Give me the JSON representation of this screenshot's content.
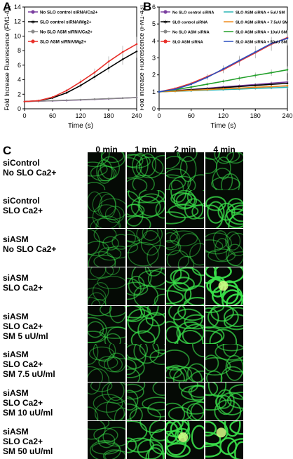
{
  "figure": {
    "panel_a_letter": "A",
    "panel_b_letter": "B",
    "panel_c_letter": "C"
  },
  "chart_data": [
    {
      "type": "line",
      "panel": "A",
      "xlabel": "Time (s)",
      "ylabel": "Fold Increase Fluorescence (FM1-43)",
      "xlim": [
        0,
        240
      ],
      "ylim": [
        0,
        14
      ],
      "xticks": [
        "0",
        "60",
        "120",
        "180",
        "240"
      ],
      "yticks": [
        "0",
        "2",
        "4",
        "6",
        "8",
        "10",
        "12",
        "14"
      ],
      "legend_position": "top-left",
      "series": [
        {
          "name": "No SLO control siRNA/Ca2+",
          "color": "#7b3fa0",
          "marker": "circle",
          "x": [
            0,
            30,
            60,
            90,
            120,
            150,
            180,
            210,
            240
          ],
          "y": [
            1.0,
            1.05,
            1.1,
            1.15,
            1.22,
            1.3,
            1.38,
            1.47,
            1.55
          ]
        },
        {
          "name": "SLO control siRNA/Mg2+",
          "color": "#000000",
          "marker": "star",
          "x": [
            0,
            30,
            60,
            90,
            120,
            150,
            180,
            210,
            240
          ],
          "y": [
            1.0,
            1.1,
            1.5,
            2.2,
            3.2,
            4.4,
            5.6,
            6.8,
            7.9
          ]
        },
        {
          "name": "No SLO ASM siRNA/Ca2+",
          "color": "#8a8a8a",
          "marker": "circle",
          "x": [
            0,
            30,
            60,
            90,
            120,
            150,
            180,
            210,
            240
          ],
          "y": [
            1.0,
            1.05,
            1.12,
            1.18,
            1.25,
            1.32,
            1.4,
            1.47,
            1.55
          ]
        },
        {
          "name": "SLO ASM siRNA/Mg2+",
          "color": "#e8302a",
          "marker": "circle",
          "x": [
            0,
            30,
            60,
            90,
            120,
            150,
            180,
            210,
            240
          ],
          "y": [
            1.0,
            1.12,
            1.6,
            2.5,
            3.7,
            5.0,
            6.5,
            7.8,
            8.9
          ]
        }
      ]
    },
    {
      "type": "line",
      "panel": "B",
      "xlabel": "Time (s)",
      "ylabel": "Fold Increase Fluorescence (FM1-43)",
      "xlim": [
        0,
        240
      ],
      "ylim": [
        0,
        6
      ],
      "xticks": [
        "0",
        "60",
        "120",
        "180",
        "240"
      ],
      "yticks": [
        "0",
        "1",
        "2",
        "3",
        "4",
        "5",
        "6"
      ],
      "legend_position": "top",
      "series": [
        {
          "name": "No SLO control siRNA",
          "color": "#7b3fa0",
          "marker": "circle",
          "x": [
            0,
            30,
            60,
            90,
            120,
            150,
            180,
            210,
            240
          ],
          "y": [
            1.0,
            1.07,
            1.14,
            1.21,
            1.29,
            1.36,
            1.43,
            1.51,
            1.58
          ]
        },
        {
          "name": "SLO control siRNA",
          "color": "#000000",
          "marker": "star",
          "x": [
            0,
            30,
            60,
            90,
            120,
            150,
            180,
            210,
            240
          ],
          "y": [
            1.0,
            1.06,
            1.12,
            1.18,
            1.25,
            1.31,
            1.38,
            1.44,
            1.5
          ]
        },
        {
          "name": "No SLO ASM siRNA",
          "color": "#8a8a8a",
          "marker": "circle",
          "x": [
            0,
            30,
            60,
            90,
            120,
            150,
            180,
            210,
            240
          ],
          "y": [
            1.0,
            1.04,
            1.08,
            1.12,
            1.17,
            1.21,
            1.25,
            1.3,
            1.35
          ]
        },
        {
          "name": "SLO ASM siRNA",
          "color": "#e8302a",
          "marker": "circle",
          "x": [
            0,
            30,
            60,
            90,
            120,
            150,
            180,
            210,
            240
          ],
          "y": [
            1.0,
            1.2,
            1.5,
            1.9,
            2.3,
            2.8,
            3.3,
            3.8,
            4.2
          ]
        },
        {
          "name": "SLO ASM siRNA + 5uU SM",
          "color": "#2bb5b5",
          "marker": "line",
          "x": [
            0,
            30,
            60,
            90,
            120,
            150,
            180,
            210,
            240
          ],
          "y": [
            1.0,
            1.03,
            1.06,
            1.1,
            1.13,
            1.16,
            1.2,
            1.23,
            1.27
          ]
        },
        {
          "name": "SLO ASM siRNA + 7.5uU SM",
          "color": "#f08a1c",
          "marker": "line",
          "x": [
            0,
            30,
            60,
            90,
            120,
            150,
            180,
            210,
            240
          ],
          "y": [
            1.0,
            1.04,
            1.09,
            1.13,
            1.18,
            1.22,
            1.27,
            1.31,
            1.36
          ]
        },
        {
          "name": "SLO ASM siRNA + 10uU SM",
          "color": "#22a02a",
          "marker": "line",
          "x": [
            0,
            30,
            60,
            90,
            120,
            150,
            180,
            210,
            240
          ],
          "y": [
            1.0,
            1.12,
            1.28,
            1.45,
            1.62,
            1.8,
            1.97,
            2.13,
            2.3
          ]
        },
        {
          "name": "SLO ASM siRNA + 50uU SM",
          "color": "#2a4fc0",
          "marker": "line",
          "x": [
            0,
            30,
            60,
            90,
            120,
            150,
            180,
            210,
            240
          ],
          "y": [
            1.0,
            1.15,
            1.45,
            1.85,
            2.35,
            2.85,
            3.35,
            3.85,
            4.15
          ]
        }
      ]
    }
  ],
  "micrographs": {
    "columns": [
      "0 min",
      "1 min",
      "2 min",
      "4 min"
    ],
    "rows": [
      {
        "label": "siControl\nNo SLO Ca2+",
        "intensity": [
          0.35,
          0.4,
          0.4,
          0.4
        ]
      },
      {
        "label": "siControl\nSLO Ca2+",
        "intensity": [
          0.25,
          0.5,
          0.6,
          0.7
        ]
      },
      {
        "label": "siASM\nNo SLO Ca2+",
        "intensity": [
          0.3,
          0.3,
          0.3,
          0.3
        ]
      },
      {
        "label": "siASM\nSLO Ca2+",
        "intensity": [
          0.25,
          0.45,
          0.7,
          0.95
        ]
      },
      {
        "label": "siASM\nSLO Ca2+\nSM 5 uU/ml",
        "intensity": [
          0.4,
          0.6,
          0.65,
          0.65
        ]
      },
      {
        "label": "siASM\nSLO Ca2+\nSM 7.5 uU/ml",
        "intensity": [
          0.3,
          0.45,
          0.5,
          0.5
        ]
      },
      {
        "label": "siASM\nSLO Ca2+\nSM 10 uU/ml",
        "intensity": [
          0.3,
          0.45,
          0.55,
          0.6
        ]
      },
      {
        "label": "siASM\nSLO Ca2+\nSM 50 uU/ml",
        "intensity": [
          0.35,
          0.65,
          0.85,
          0.9
        ]
      }
    ],
    "cell_color": "#39e04a"
  }
}
